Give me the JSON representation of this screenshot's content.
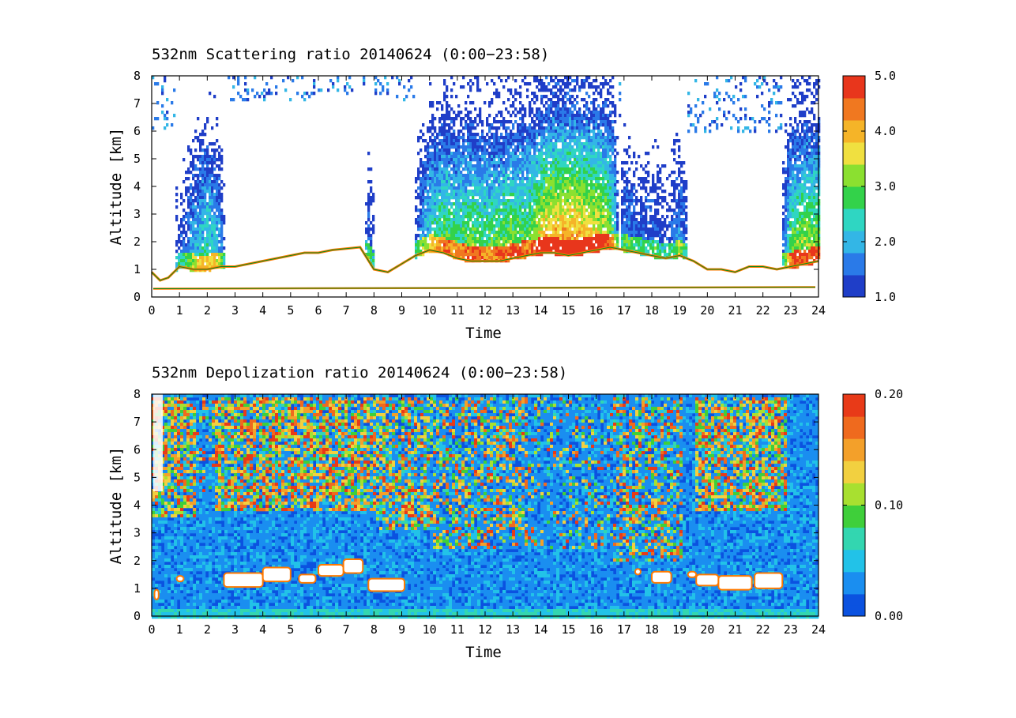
{
  "colors": {
    "sr_colormap": [
      "#1f3ec8",
      "#2a7ae8",
      "#33b6e6",
      "#2fd6c2",
      "#33d24a",
      "#8be030",
      "#f0e040",
      "#f5b428",
      "#f07820",
      "#e8361c"
    ],
    "dr_colormap": [
      "#0b52e0",
      "#1a8ef0",
      "#22c2e8",
      "#33d6b0",
      "#3fcf3a",
      "#a8e030",
      "#f2d040",
      "#f3a02a",
      "#ef6a1e",
      "#e83a18"
    ],
    "contour_outer": "#ff7a00",
    "contour_inner": "#008a1e",
    "cloud_fill": "#ffffff"
  },
  "chart_data": [
    {
      "id": "scattering",
      "type": "heatmap",
      "title": "532nm Scattering ratio  20140624 (0:00−23:58)",
      "xlabel": "Time",
      "ylabel": "Altitude [km]",
      "xlim": [
        0,
        24
      ],
      "ylim": [
        0,
        8
      ],
      "xticks": [
        "0",
        "1",
        "2",
        "3",
        "4",
        "5",
        "6",
        "7",
        "8",
        "9",
        "10",
        "11",
        "12",
        "13",
        "14",
        "15",
        "16",
        "17",
        "18",
        "19",
        "20",
        "21",
        "22",
        "23",
        "24"
      ],
      "yticks": [
        "0",
        "1",
        "2",
        "3",
        "4",
        "5",
        "6",
        "7",
        "8"
      ],
      "colorbar": {
        "range": [
          1.0,
          5.0
        ],
        "ticks": [
          "1.0",
          "2.0",
          "3.0",
          "4.0",
          "5.0"
        ]
      },
      "cloud_base_km": [
        [
          0.0,
          0.9
        ],
        [
          0.3,
          0.6
        ],
        [
          0.6,
          0.7
        ],
        [
          1.0,
          1.1
        ],
        [
          1.5,
          1.0
        ],
        [
          2.0,
          1.0
        ],
        [
          2.5,
          1.1
        ],
        [
          3.0,
          1.1
        ],
        [
          3.5,
          1.2
        ],
        [
          4.0,
          1.3
        ],
        [
          4.5,
          1.4
        ],
        [
          5.0,
          1.5
        ],
        [
          5.5,
          1.6
        ],
        [
          6.0,
          1.6
        ],
        [
          6.5,
          1.7
        ],
        [
          7.0,
          1.75
        ],
        [
          7.5,
          1.8
        ],
        [
          8.0,
          1.0
        ],
        [
          8.5,
          0.9
        ],
        [
          9.0,
          1.2
        ],
        [
          9.5,
          1.5
        ],
        [
          10.0,
          1.7
        ],
        [
          10.5,
          1.6
        ],
        [
          11.0,
          1.4
        ],
        [
          11.5,
          1.3
        ],
        [
          12.0,
          1.3
        ],
        [
          12.5,
          1.3
        ],
        [
          13.0,
          1.4
        ],
        [
          13.5,
          1.5
        ],
        [
          14.0,
          1.6
        ],
        [
          14.5,
          1.6
        ],
        [
          15.0,
          1.5
        ],
        [
          15.5,
          1.6
        ],
        [
          16.0,
          1.7
        ],
        [
          16.5,
          1.8
        ],
        [
          17.0,
          1.7
        ],
        [
          17.5,
          1.6
        ],
        [
          18.0,
          1.5
        ],
        [
          18.5,
          1.4
        ],
        [
          19.0,
          1.5
        ],
        [
          19.5,
          1.3
        ],
        [
          20.0,
          1.0
        ],
        [
          20.5,
          1.0
        ],
        [
          21.0,
          0.9
        ],
        [
          21.5,
          1.1
        ],
        [
          22.0,
          1.1
        ],
        [
          22.5,
          1.0
        ],
        [
          23.0,
          1.1
        ],
        [
          23.5,
          1.2
        ],
        [
          24.0,
          1.3
        ]
      ],
      "surface_layer_km": 0.3,
      "column_intensity": [
        [
          0.0,
          0.9
        ],
        [
          1.0,
          1.2
        ],
        [
          1.6,
          2.4
        ],
        [
          2.0,
          2.8
        ],
        [
          2.4,
          2.2
        ],
        [
          2.6,
          1.0
        ],
        [
          7.6,
          1.0
        ],
        [
          7.8,
          1.6
        ],
        [
          8.0,
          1.0
        ],
        [
          9.4,
          1.0
        ],
        [
          9.6,
          1.8
        ],
        [
          10.0,
          2.6
        ],
        [
          10.5,
          3.2
        ],
        [
          11.0,
          3.0
        ],
        [
          11.5,
          3.4
        ],
        [
          12.0,
          3.0
        ],
        [
          12.5,
          3.3
        ],
        [
          13.0,
          3.4
        ],
        [
          13.5,
          3.2
        ],
        [
          14.0,
          4.2
        ],
        [
          14.5,
          4.4
        ],
        [
          15.0,
          4.6
        ],
        [
          15.5,
          4.3
        ],
        [
          16.0,
          4.0
        ],
        [
          16.5,
          3.4
        ],
        [
          16.8,
          1.0
        ],
        [
          17.0,
          1.8
        ],
        [
          17.5,
          1.4
        ],
        [
          18.0,
          1.5
        ],
        [
          18.5,
          1.2
        ],
        [
          19.0,
          2.0
        ],
        [
          19.3,
          1.0
        ],
        [
          22.6,
          1.0
        ],
        [
          23.0,
          3.4
        ],
        [
          23.5,
          3.6
        ],
        [
          24.0,
          3.4
        ]
      ]
    },
    {
      "id": "depolarization",
      "type": "heatmap",
      "title": "532nm Depolization ratio  20140624 (0:00−23:58)",
      "xlabel": "Time",
      "ylabel": "Altitude [km]",
      "xlim": [
        0,
        24
      ],
      "ylim": [
        0,
        8
      ],
      "xticks": [
        "0",
        "1",
        "2",
        "3",
        "4",
        "5",
        "6",
        "7",
        "8",
        "9",
        "10",
        "11",
        "12",
        "13",
        "14",
        "15",
        "16",
        "17",
        "18",
        "19",
        "20",
        "21",
        "22",
        "23",
        "24"
      ],
      "yticks": [
        "0",
        "1",
        "2",
        "3",
        "4",
        "5",
        "6",
        "7",
        "8"
      ],
      "colorbar": {
        "range": [
          0.0,
          0.2
        ],
        "ticks": [
          "0.00",
          "0.10",
          "0.20"
        ]
      },
      "cloud_patches": [
        [
          0.1,
          0.25,
          0.6,
          0.95
        ],
        [
          0.9,
          1.15,
          1.25,
          1.45
        ],
        [
          2.6,
          4.0,
          1.05,
          1.55
        ],
        [
          4.0,
          5.0,
          1.25,
          1.75
        ],
        [
          5.3,
          5.9,
          1.2,
          1.5
        ],
        [
          6.0,
          6.9,
          1.45,
          1.85
        ],
        [
          6.9,
          7.6,
          1.55,
          2.05
        ],
        [
          7.8,
          9.1,
          0.9,
          1.35
        ],
        [
          17.4,
          17.6,
          1.5,
          1.7
        ],
        [
          18.0,
          18.7,
          1.2,
          1.6
        ],
        [
          19.3,
          19.6,
          1.4,
          1.6
        ],
        [
          19.6,
          20.4,
          1.1,
          1.5
        ],
        [
          20.4,
          21.6,
          0.95,
          1.45
        ],
        [
          21.7,
          22.7,
          1.0,
          1.55
        ]
      ],
      "noise_regions": [
        [
          0.0,
          1.5,
          3.6,
          8.0,
          0.85
        ],
        [
          1.5,
          2.2,
          4.5,
          8.0,
          0.25
        ],
        [
          2.2,
          8.0,
          3.8,
          8.0,
          0.85
        ],
        [
          8.0,
          10.0,
          3.2,
          8.0,
          0.7
        ],
        [
          10.0,
          13.5,
          2.5,
          8.0,
          0.5
        ],
        [
          13.5,
          16.5,
          2.5,
          8.0,
          0.25
        ],
        [
          16.5,
          19.0,
          2.0,
          8.0,
          0.5
        ],
        [
          19.5,
          22.8,
          3.8,
          8.0,
          0.8
        ]
      ]
    }
  ]
}
